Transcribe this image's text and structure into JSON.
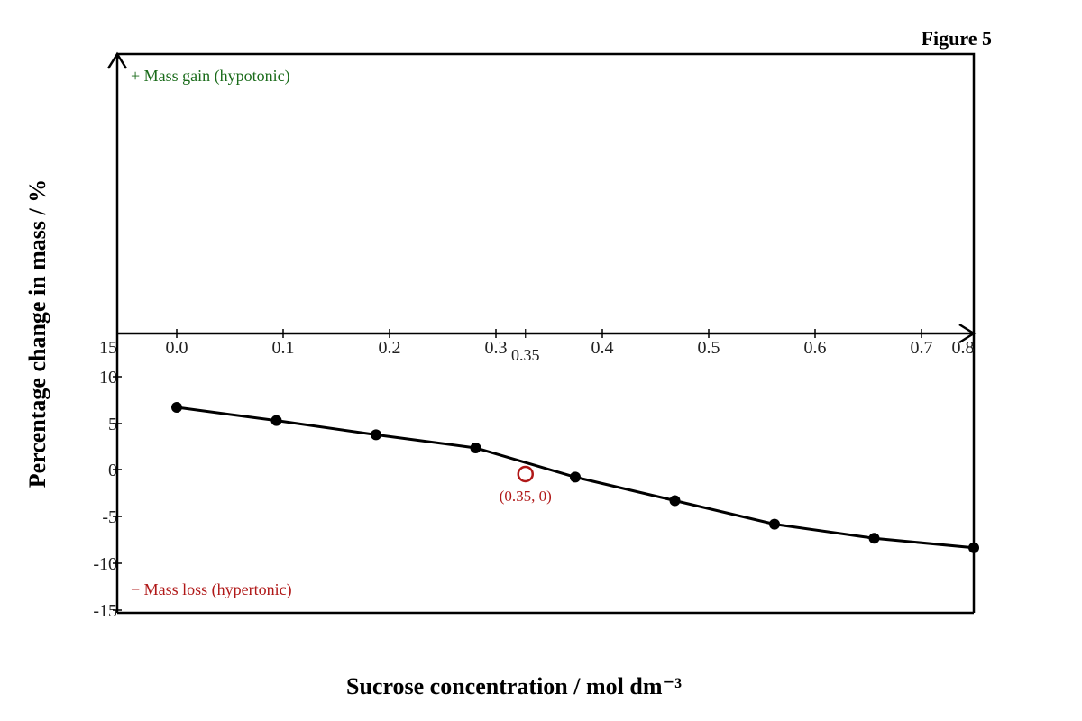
{
  "figure_label": "Figure 5",
  "chart_data": {
    "type": "line",
    "title": "",
    "xlabel": "Sucrose concentration / mol dm⁻³",
    "ylabel": "Percentage change in mass / %",
    "xlim": [
      0.0,
      0.8
    ],
    "ylim": [
      -15,
      15
    ],
    "x_ticks": [
      "0.0",
      "0.1",
      "0.2",
      "0.3",
      "0.4",
      "0.5",
      "0.6",
      "0.7",
      "0.8"
    ],
    "x_tick_values": [
      0.0,
      0.1,
      0.2,
      0.3,
      0.4,
      0.5,
      0.6,
      0.7,
      0.8
    ],
    "y_ticks": [
      "15",
      "10",
      "5",
      "0",
      "-5",
      "-10",
      "-15"
    ],
    "y_tick_values": [
      15,
      10,
      5,
      0,
      -5,
      -10,
      -15
    ],
    "grid": false,
    "series": [
      {
        "x": [
          0.0,
          0.1,
          0.2,
          0.3,
          0.4,
          0.5,
          0.6,
          0.7,
          0.8
        ],
        "y": [
          6.6,
          5.2,
          3.7,
          2.3,
          -0.8,
          -3.3,
          -5.8,
          -7.3,
          -8.3
        ]
      }
    ],
    "annotations": {
      "gain_label": "+ Mass gain (hypotonic)",
      "loss_label": "− Mass loss (hypertonic)",
      "marked_x_label": "0.35",
      "marked_point_label": "(0.35, 0)",
      "marked_point": {
        "x": 0.35,
        "y": 0
      }
    },
    "colors": {
      "line": "#000000",
      "gain": "#1a6b1a",
      "loss": "#b01818",
      "marker": "#b01818"
    }
  }
}
